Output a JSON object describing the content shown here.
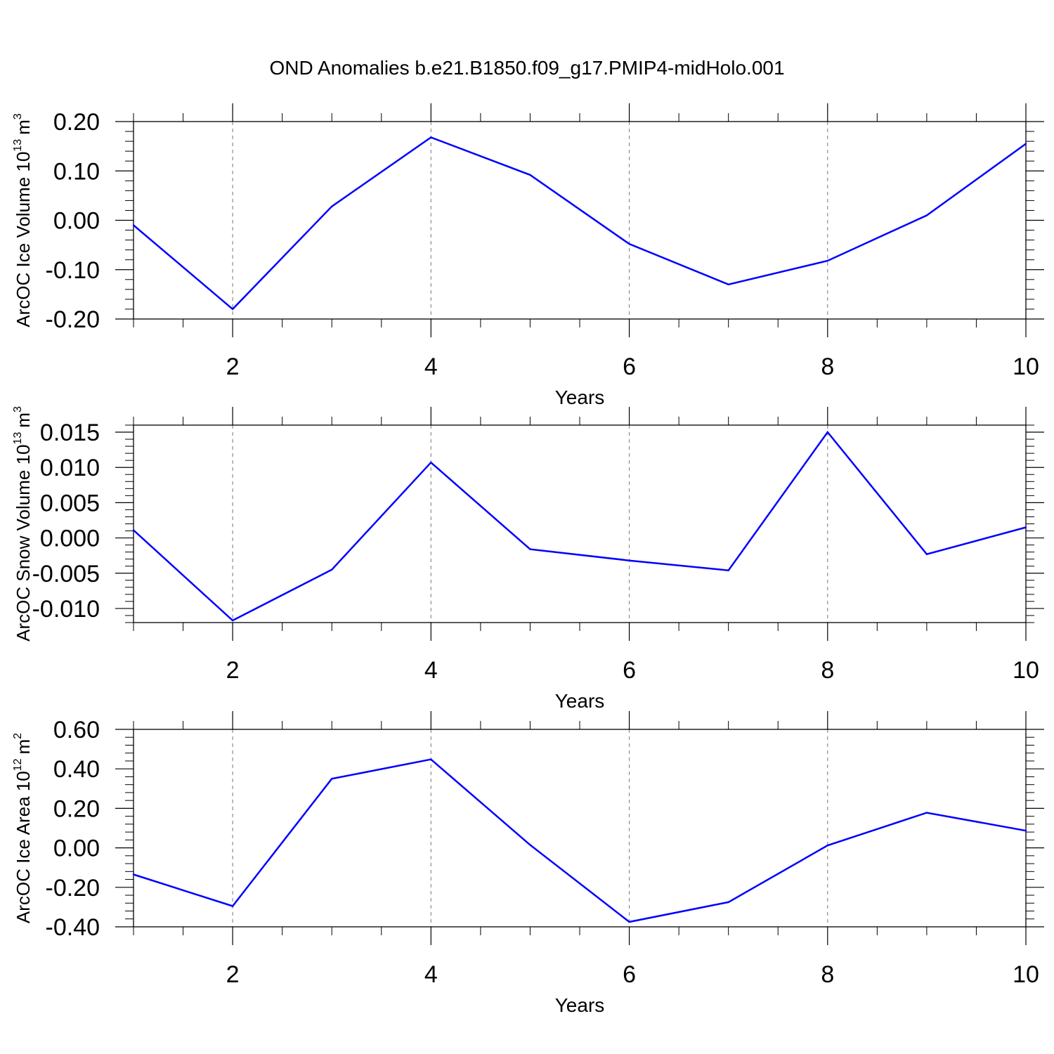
{
  "figure_title": "OND Anomalies b.e21.B1850.f09_g17.PMIP4-midHolo.001",
  "colors": {
    "line": "#0000ff",
    "axis": "#000000",
    "grid": "#8c8c8c"
  },
  "chart_data": [
    {
      "type": "line",
      "title": "OND Anomalies b.e21.B1850.f09_g17.PMIP4-midHolo.001",
      "xlabel": "Years",
      "ylabel": {
        "text": "ArcOC Ice Volume 10",
        "exp": "13",
        "unit": "m",
        "unit_exp": "3"
      },
      "x": [
        1,
        2,
        3,
        4,
        5,
        6,
        7,
        8,
        9,
        10
      ],
      "y": [
        -0.01,
        -0.18,
        0.028,
        0.168,
        0.092,
        -0.048,
        -0.13,
        -0.082,
        0.01,
        0.155
      ],
      "xlim": [
        1,
        10
      ],
      "ylim": [
        -0.2,
        0.2
      ],
      "xticks": [
        2,
        4,
        6,
        8,
        10
      ],
      "xtick_labels": [
        "2",
        "4",
        "6",
        "8",
        "10"
      ],
      "yticks": [
        -0.2,
        -0.1,
        0.0,
        0.1,
        0.2
      ],
      "ytick_labels": [
        "-0.20",
        "-0.10",
        "0.00",
        "0.10",
        "0.20"
      ],
      "yminor_step": 0.02,
      "grid": "vertical dashed at major x ticks"
    },
    {
      "type": "line",
      "xlabel": "Years",
      "ylabel": {
        "text": "ArcOC Snow Volume 10",
        "exp": "13",
        "unit": "m",
        "unit_exp": "3"
      },
      "x": [
        1,
        2,
        3,
        4,
        5,
        6,
        7,
        8,
        9,
        10
      ],
      "y": [
        0.0011,
        -0.0117,
        -0.0045,
        0.0107,
        -0.0016,
        -0.0032,
        -0.0046,
        0.015,
        -0.0023,
        0.0015
      ],
      "xlim": [
        1,
        10
      ],
      "ylim": [
        -0.012,
        0.016
      ],
      "xticks": [
        2,
        4,
        6,
        8,
        10
      ],
      "xtick_labels": [
        "2",
        "4",
        "6",
        "8",
        "10"
      ],
      "yticks": [
        -0.01,
        -0.005,
        0.0,
        0.005,
        0.01,
        0.015
      ],
      "ytick_labels": [
        "-0.010",
        "-0.005",
        "0.000",
        "0.005",
        "0.010",
        "0.015"
      ],
      "yminor_step": 0.001,
      "grid": "vertical dashed at major x ticks"
    },
    {
      "type": "line",
      "xlabel": "Years",
      "ylabel": {
        "text": "ArcOC Ice Area 10",
        "exp": "12",
        "unit": "m",
        "unit_exp": "2"
      },
      "x": [
        1,
        2,
        3,
        4,
        5,
        6,
        7,
        8,
        9,
        10
      ],
      "y": [
        -0.135,
        -0.295,
        0.35,
        0.448,
        0.015,
        -0.375,
        -0.275,
        0.012,
        0.178,
        0.087
      ],
      "xlim": [
        1,
        10
      ],
      "ylim": [
        -0.4,
        0.6
      ],
      "xticks": [
        2,
        4,
        6,
        8,
        10
      ],
      "xtick_labels": [
        "2",
        "4",
        "6",
        "8",
        "10"
      ],
      "yticks": [
        -0.4,
        -0.2,
        0.0,
        0.2,
        0.4,
        0.6
      ],
      "ytick_labels": [
        "-0.40",
        "-0.20",
        "0.00",
        "0.20",
        "0.40",
        "0.60"
      ],
      "yminor_step": 0.04,
      "grid": "vertical dashed at major x ticks"
    }
  ]
}
